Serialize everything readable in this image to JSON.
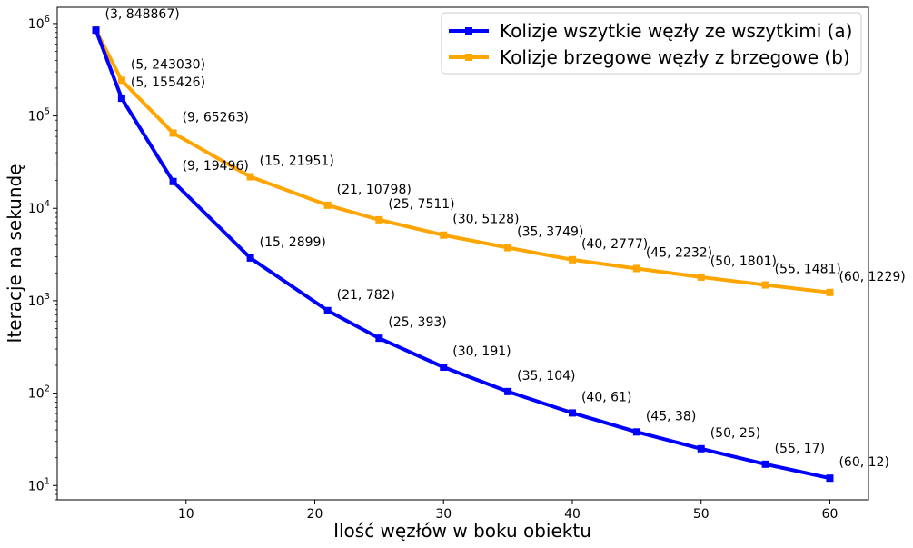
{
  "chart_data": {
    "type": "line",
    "xlabel": "Ilość węzłów w boku obiektu",
    "ylabel": "Iteracje na sekundę",
    "yscale": "log",
    "xlim": [
      0,
      63
    ],
    "ylim": [
      7,
      1500000
    ],
    "x_ticks": [
      10,
      20,
      30,
      40,
      50,
      60
    ],
    "y_ticks": [
      {
        "base": "10",
        "exp": "1",
        "value": 10
      },
      {
        "base": "10",
        "exp": "2",
        "value": 100
      },
      {
        "base": "10",
        "exp": "3",
        "value": 1000
      },
      {
        "base": "10",
        "exp": "4",
        "value": 10000
      },
      {
        "base": "10",
        "exp": "5",
        "value": 100000
      },
      {
        "base": "10",
        "exp": "6",
        "value": 1000000
      }
    ],
    "grid": false,
    "legend_position": "top-right",
    "series": [
      {
        "name": "Kolizje wszytkie węzły ze wszytkimi (a)",
        "color": "#0000ff",
        "x": [
          3,
          5,
          9,
          15,
          21,
          25,
          30,
          35,
          40,
          45,
          50,
          55,
          60
        ],
        "y": [
          848867,
          155426,
          19496,
          2899,
          782,
          393,
          191,
          104,
          61,
          38,
          25,
          17,
          12
        ],
        "labels": [
          "(5, 155426)",
          "(9, 19496)",
          "(15, 2899)",
          "(21, 782)",
          "(25, 393)",
          "(30, 191)",
          "(35, 104)",
          "(40, 61)",
          "(45, 38)",
          "(50, 25)",
          "(55, 17)",
          "(60, 12)"
        ],
        "label_x": [
          5,
          9,
          15,
          21,
          25,
          30,
          35,
          40,
          45,
          50,
          55,
          60
        ],
        "label_y": [
          155426,
          19496,
          2899,
          782,
          393,
          191,
          104,
          61,
          38,
          25,
          17,
          12
        ]
      },
      {
        "name": "Kolizje brzegowe węzły z brzegowe (b)",
        "color": "#ffa500",
        "x": [
          3,
          5,
          9,
          15,
          21,
          25,
          30,
          35,
          40,
          45,
          50,
          55,
          60
        ],
        "y": [
          848867,
          243030,
          65263,
          21951,
          10798,
          7511,
          5128,
          3749,
          2777,
          2232,
          1801,
          1481,
          1229
        ],
        "labels": [
          "(3, 848867)",
          "(5, 243030)",
          "(9, 65263)",
          "(15, 21951)",
          "(21, 10798)",
          "(25, 7511)",
          "(30, 5128)",
          "(35, 3749)",
          "(40, 2777)",
          "(45, 2232)",
          "(50, 1801)",
          "(55, 1481)",
          "(60, 1229)"
        ],
        "label_x": [
          3,
          5,
          9,
          15,
          21,
          25,
          30,
          35,
          40,
          45,
          50,
          55,
          60
        ],
        "label_y": [
          848867,
          243030,
          65263,
          21951,
          10798,
          7511,
          5128,
          3749,
          2777,
          2232,
          1801,
          1481,
          1229
        ]
      }
    ]
  }
}
